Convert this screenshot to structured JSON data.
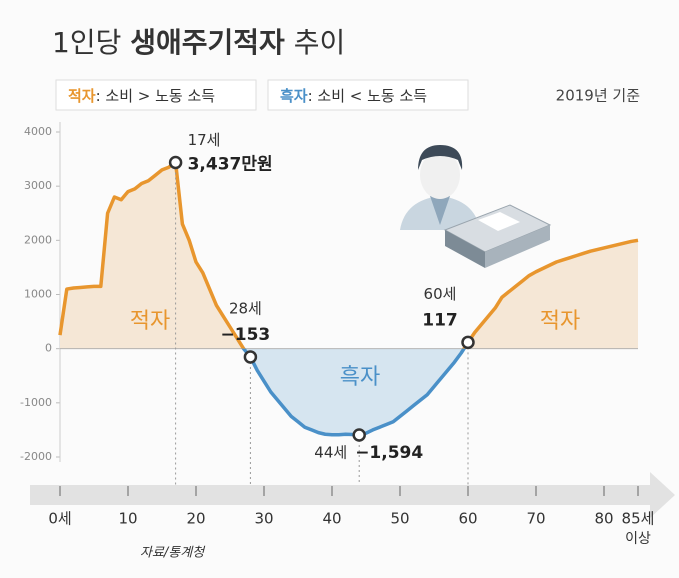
{
  "chart_data": {
    "type": "line",
    "title_parts": [
      "1인당 ",
      "생애주기적자",
      " 추이"
    ],
    "legend": [
      {
        "name": "적자",
        "text": ": 소비 > 노동 소득"
      },
      {
        "name": "흑자",
        "text": ": 소비 < 노동 소득"
      }
    ],
    "subtitle": "2019년 기준",
    "source": "자료/통계청",
    "region_labels": [
      "적자",
      "흑자",
      "적자"
    ],
    "annotations": [
      "17세",
      "28세",
      "44세",
      "60세"
    ],
    "x": [
      0,
      1,
      2,
      3,
      4,
      5,
      6,
      7,
      8,
      9,
      10,
      11,
      12,
      13,
      14,
      15,
      16,
      17,
      18,
      19,
      20,
      21,
      22,
      23,
      24,
      25,
      26,
      27,
      28,
      29,
      30,
      31,
      32,
      33,
      34,
      35,
      36,
      37,
      38,
      39,
      40,
      41,
      42,
      43,
      44,
      45,
      46,
      47,
      48,
      49,
      50,
      51,
      52,
      53,
      54,
      55,
      56,
      57,
      58,
      59,
      60,
      61,
      62,
      63,
      64,
      65,
      66,
      67,
      68,
      69,
      70,
      71,
      72,
      73,
      74,
      75,
      76,
      77,
      78,
      79,
      80,
      81,
      82,
      83,
      84,
      85
    ],
    "values": [
      250,
      1100,
      1120,
      1130,
      1140,
      1150,
      1150,
      2500,
      2800,
      2750,
      2900,
      2950,
      3050,
      3100,
      3200,
      3300,
      3350,
      3437,
      2300,
      2000,
      1600,
      1400,
      1100,
      800,
      600,
      400,
      200,
      0,
      -153,
      -400,
      -600,
      -800,
      -950,
      -1100,
      -1250,
      -1350,
      -1450,
      -1500,
      -1550,
      -1580,
      -1590,
      -1590,
      -1580,
      -1585,
      -1594,
      -1560,
      -1500,
      -1450,
      -1400,
      -1350,
      -1250,
      -1150,
      -1050,
      -950,
      -850,
      -700,
      -550,
      -400,
      -250,
      -80,
      117,
      300,
      450,
      600,
      750,
      950,
      1050,
      1150,
      1250,
      1350,
      1420,
      1480,
      1540,
      1600,
      1640,
      1680,
      1720,
      1760,
      1800,
      1830,
      1860,
      1890,
      1920,
      1950,
      1980,
      2000
    ],
    "value_labels": [
      null,
      null,
      null,
      null,
      null,
      null,
      null,
      null,
      null,
      null,
      null,
      null,
      null,
      null,
      null,
      null,
      null,
      "3,437만원",
      null,
      null,
      null,
      null,
      null,
      null,
      null,
      null,
      null,
      null,
      "−153",
      null,
      null,
      null,
      null,
      null,
      null,
      null,
      null,
      null,
      null,
      null,
      null,
      null,
      null,
      null,
      "−1,594",
      null,
      null,
      null,
      null,
      null,
      null,
      null,
      null,
      null,
      null,
      null,
      null,
      null,
      null,
      null,
      "117",
      null,
      null,
      null,
      null,
      null,
      null,
      null,
      null,
      null,
      null,
      null,
      null,
      null,
      null,
      null,
      null,
      null,
      null,
      null,
      null,
      null,
      null,
      null,
      null,
      null
    ],
    "color_positive": "#e8962e",
    "color_negative": "#4a90c8",
    "fill_positive": "#f5e7d6",
    "fill_negative": "#d6e5f0",
    "xlim": [
      0,
      85
    ],
    "xticks": [
      {
        "value": 0,
        "label": "0세"
      },
      10,
      20,
      30,
      40,
      50,
      60,
      70,
      {
        "value": 80,
        "label": "80"
      },
      {
        "value": 85,
        "label": "85세"
      }
    ],
    "xtick_note": "이상",
    "ylim": [
      -2000,
      4000
    ],
    "yticks": [
      4000,
      3000,
      2000,
      1000,
      0,
      -1000,
      -2000
    ]
  }
}
